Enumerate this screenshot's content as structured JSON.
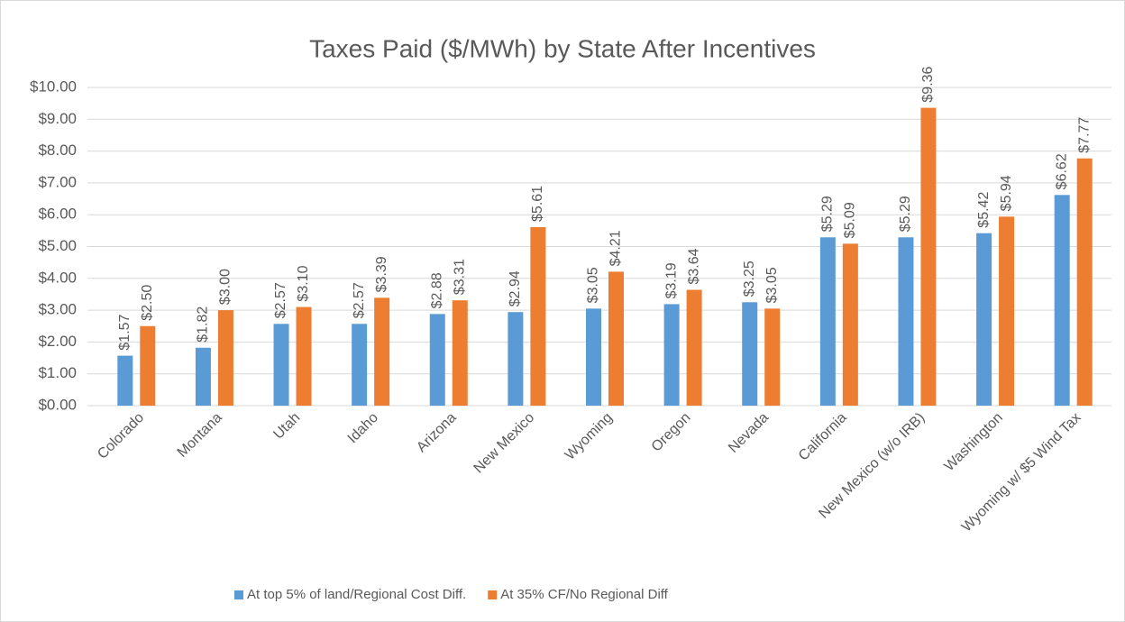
{
  "chart_data": {
    "type": "bar",
    "title": "Taxes Paid ($/MWh) by State After Incentives",
    "categories": [
      "Colorado",
      "Montana",
      "Utah",
      "Idaho",
      "Arizona",
      "New Mexico",
      "Wyoming",
      "Oregon",
      "Nevada",
      "California",
      "New Mexico (w/o IRB)",
      "Washington",
      "Wyoming w/ $5 Wind Tax"
    ],
    "series": [
      {
        "name": "At top 5% of land/Regional Cost Diff.",
        "color": "#5b9bd5",
        "values": [
          1.57,
          1.82,
          2.57,
          2.57,
          2.88,
          2.94,
          3.05,
          3.19,
          3.25,
          5.29,
          5.29,
          5.42,
          6.62
        ],
        "value_labels": [
          "$1.57",
          "$1.82",
          "$2.57",
          "$2.57",
          "$2.88",
          "$2.94",
          "$3.05",
          "$3.19",
          "$3.25",
          "$5.29",
          "$5.29",
          "$5.42",
          "$6.62"
        ]
      },
      {
        "name": "At 35% CF/No Regional Diff",
        "color": "#ed7d31",
        "values": [
          2.5,
          3.0,
          3.1,
          3.39,
          3.31,
          5.61,
          4.21,
          3.64,
          3.05,
          5.09,
          9.36,
          5.94,
          7.77
        ],
        "value_labels": [
          "$2.50",
          "$3.00",
          "$3.10",
          "$3.39",
          "$3.31",
          "$5.61",
          "$4.21",
          "$3.64",
          "$3.05",
          "$5.09",
          "$9.36",
          "$5.94",
          "$7.77"
        ]
      }
    ],
    "ylim": [
      0,
      10
    ],
    "yticks": [
      {
        "value": 0,
        "label": "$0.00"
      },
      {
        "value": 1,
        "label": "$1.00"
      },
      {
        "value": 2,
        "label": "$2.00"
      },
      {
        "value": 3,
        "label": "$3.00"
      },
      {
        "value": 4,
        "label": "$4.00"
      },
      {
        "value": 5,
        "label": "$5.00"
      },
      {
        "value": 6,
        "label": "$6.00"
      },
      {
        "value": 7,
        "label": "$7.00"
      },
      {
        "value": 8,
        "label": "$8.00"
      },
      {
        "value": 9,
        "label": "$9.00"
      },
      {
        "value": 10,
        "label": "$10.00"
      }
    ],
    "grid": true,
    "legend": "bottom"
  }
}
